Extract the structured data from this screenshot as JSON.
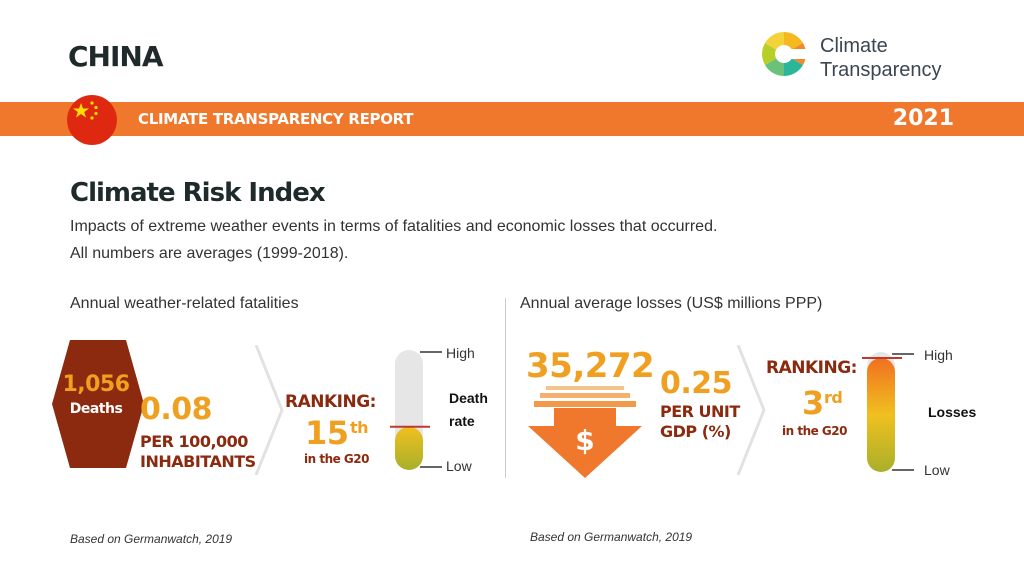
{
  "header": {
    "country": "CHINA",
    "report_title": "CLIMATE TRANSPARENCY REPORT",
    "year": "2021",
    "logo_line1": "Climate",
    "logo_line2": "Transparency",
    "accent": "#f0782d"
  },
  "section": {
    "title": "Climate Risk Index",
    "desc1": "Impacts of extreme weather events in terms of fatalities and economic losses that occurred.",
    "desc2": "All numbers are averages (1999-2018)."
  },
  "fatalities": {
    "heading": "Annual weather-related fatalities",
    "deaths_value": "1,056",
    "deaths_label": "Deaths",
    "rate_value": "0.08",
    "rate_label1": "PER 100,000",
    "rate_label2": "INHABITANTS",
    "ranking_label": "RANKING:",
    "ranking_value": "15",
    "ranking_suffix": "th",
    "ranking_sub": "in the G20",
    "gauge_high": "High",
    "gauge_low": "Low",
    "gauge_title1": "Death",
    "gauge_title2": "rate",
    "gauge_level": 0.36,
    "source": "Based on Germanwatch, 2019"
  },
  "losses": {
    "heading": "Annual average losses (US$ millions PPP)",
    "value": "35,272",
    "dollar_symbol": "$",
    "per_unit_value": "0.25",
    "per_unit_label1": "PER UNIT",
    "per_unit_label2": "GDP (%)",
    "ranking_label": "RANKING:",
    "ranking_value": "3",
    "ranking_suffix": "rd",
    "ranking_sub": "in the G20",
    "gauge_high": "High",
    "gauge_low": "Low",
    "gauge_title": "Losses",
    "gauge_level": 0.95,
    "source": "Based on Germanwatch, 2019"
  },
  "colors": {
    "dark_red": "#8b2a0e",
    "orange_yellow": "#f0a020",
    "olive": "#a8b02a"
  },
  "icons": [
    "china-flag-icon",
    "climate-transparency-logo-icon",
    "dollar-arrow-icon",
    "chevron-right-icon"
  ]
}
